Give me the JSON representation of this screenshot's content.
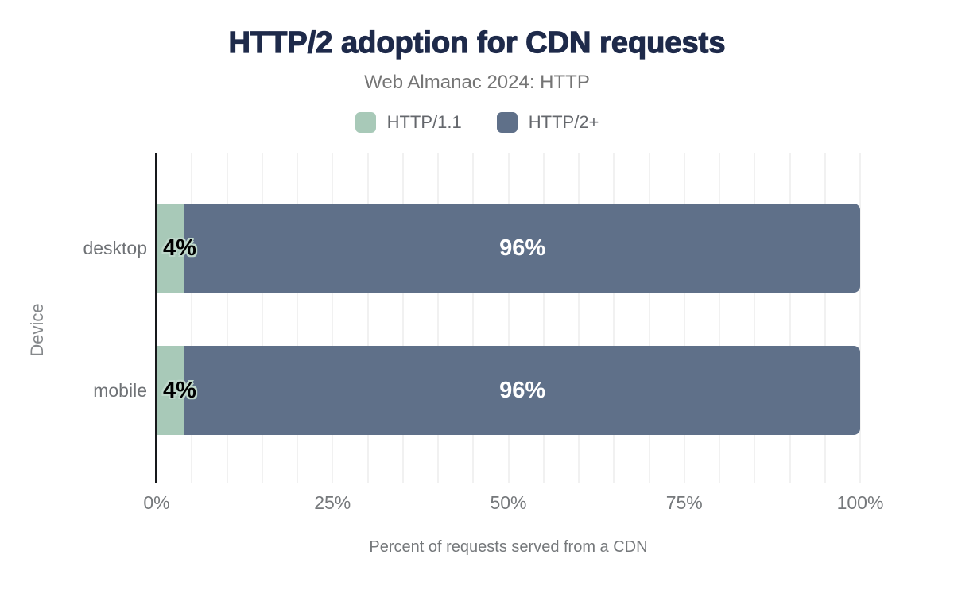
{
  "title": "HTTP/2 adoption for CDN requests",
  "subtitle": "Web Almanac 2024: HTTP",
  "legend": [
    {
      "label": "HTTP/1.1",
      "color": "#a8c9b8"
    },
    {
      "label": "HTTP/2+",
      "color": "#5f7089"
    }
  ],
  "colors": {
    "title_text": "#1e2a4a",
    "muted_text": "#75787b",
    "gridline": "#f1f1f1",
    "axis_line": "#17191c",
    "background": "#ffffff",
    "http11_green": "#a8c9b8",
    "http2_blue": "#5f7089"
  },
  "chart_data": {
    "type": "bar",
    "orientation": "horizontal",
    "stacked": true,
    "title": "HTTP/2 adoption for CDN requests",
    "subtitle": "Web Almanac 2024: HTTP",
    "categories": [
      "desktop",
      "mobile"
    ],
    "series": [
      {
        "name": "HTTP/1.1",
        "color": "#a8c9b8",
        "values": [
          4,
          4
        ],
        "labels": [
          "4%",
          "4%"
        ]
      },
      {
        "name": "HTTP/2+",
        "color": "#5f7089",
        "values": [
          96,
          96
        ],
        "labels": [
          "96%",
          "96%"
        ]
      }
    ],
    "xlabel": "Percent of requests served from a CDN",
    "ylabel": "Device",
    "xlim": [
      0,
      100
    ],
    "xticks": [
      {
        "value": 0,
        "label": "0%"
      },
      {
        "value": 25,
        "label": "25%"
      },
      {
        "value": 50,
        "label": "50%"
      },
      {
        "value": 75,
        "label": "75%"
      },
      {
        "value": 100,
        "label": "100%"
      }
    ],
    "grid": true,
    "grid_step": 5,
    "legend_position": "top"
  }
}
